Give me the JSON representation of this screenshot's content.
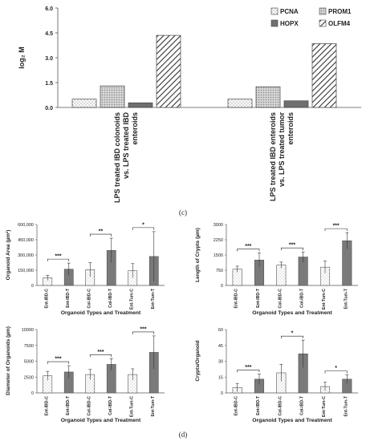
{
  "panel_c_label": "(c)",
  "panel_d_label": "(d)",
  "chart_data": [
    {
      "type": "bar",
      "panel": "c",
      "ylabel": "log₂ M",
      "ylim": [
        0,
        6.0
      ],
      "yticks": [
        "0.0",
        "1.5",
        "3.0",
        "4.5",
        "6.0"
      ],
      "categories": [
        "LPS treated IBD colonoids vs. LPS treated IBD enteroids",
        "LPS treated IBD enteroids vs. LPS treated tumor enteroids"
      ],
      "series": [
        {
          "name": "PCNA",
          "values": [
            0.5,
            0.5
          ],
          "pattern": "dots"
        },
        {
          "name": "PROM1",
          "values": [
            1.3,
            1.25
          ],
          "pattern": "dense"
        },
        {
          "name": "HOPX",
          "values": [
            0.28,
            0.4
          ],
          "pattern": "dark"
        },
        {
          "name": "OLFM4",
          "values": [
            4.35,
            3.85
          ],
          "pattern": "diag"
        }
      ],
      "legend_position": "top-right"
    },
    {
      "type": "bar",
      "panel": "d1",
      "ylabel": "Organoid Area (µm²)",
      "xlabel": "Organoid  Types and Treatment",
      "ylim": [
        0,
        600000
      ],
      "yticks": [
        "0",
        "150,000",
        "300,000",
        "450,000",
        "600,000"
      ],
      "categories": [
        "Ent-IBD-C",
        "Ent-IBD-T",
        "Col-IBD-C",
        "Col-IBD-T",
        "Ent-Tum-C",
        "Ent-Tum-T"
      ],
      "values": [
        75000,
        160000,
        155000,
        345000,
        145000,
        285000
      ],
      "errors": [
        25000,
        60000,
        70000,
        120000,
        70000,
        245000
      ],
      "significance": [
        "***",
        "**",
        "*"
      ]
    },
    {
      "type": "bar",
      "panel": "d2",
      "ylabel": "Length of Crypts (µm)",
      "xlabel": "Organoid  Types and Treatment",
      "ylim": [
        0,
        3000
      ],
      "yticks": [
        "0",
        "750",
        "1500",
        "2250",
        "3000"
      ],
      "categories": [
        "Ent-IBD-C",
        "Ent-IBD-T",
        "Col-IBD-C",
        "Col-IBD-T",
        "Ent-Tum-C",
        "Ent-Tum-T"
      ],
      "values": [
        800,
        1250,
        1000,
        1400,
        900,
        2200
      ],
      "errors": [
        150,
        350,
        150,
        250,
        300,
        400
      ],
      "significance": [
        "***",
        "***",
        "***"
      ]
    },
    {
      "type": "bar",
      "panel": "d3",
      "ylabel": "Diameter of Organoids (µm)",
      "xlabel": "Organoid  Types and Treatment",
      "ylim": [
        0,
        10000
      ],
      "yticks": [
        "0",
        "2500",
        "5000",
        "7500",
        "10000"
      ],
      "categories": [
        "Ent-IBD-C",
        "Ent-IBD-T",
        "Col-IBD-C",
        "Col-IBD-T",
        "Ent-Tum-C",
        "Ent-Tum-T"
      ],
      "values": [
        2700,
        3300,
        2900,
        4500,
        2900,
        6400
      ],
      "errors": [
        700,
        1000,
        800,
        900,
        900,
        2600
      ],
      "significance": [
        "***",
        "***",
        "***"
      ]
    },
    {
      "type": "bar",
      "panel": "d4",
      "ylabel": "Crypts/Organoid",
      "xlabel": "Organoid  Types and Treatment",
      "ylim": [
        0,
        60
      ],
      "yticks": [
        "0",
        "15",
        "30",
        "45",
        "60"
      ],
      "categories": [
        "Ent-IBD-C",
        "Ent-IBD-T",
        "Col-IBD-C",
        "Col-IBD-T",
        "Ent-Tum-C",
        "Ent-Tum-T"
      ],
      "values": [
        5,
        13,
        19,
        37,
        6,
        13
      ],
      "errors": [
        4,
        5,
        8,
        13,
        4,
        4
      ],
      "significance": [
        "***",
        "*",
        "*"
      ]
    }
  ]
}
